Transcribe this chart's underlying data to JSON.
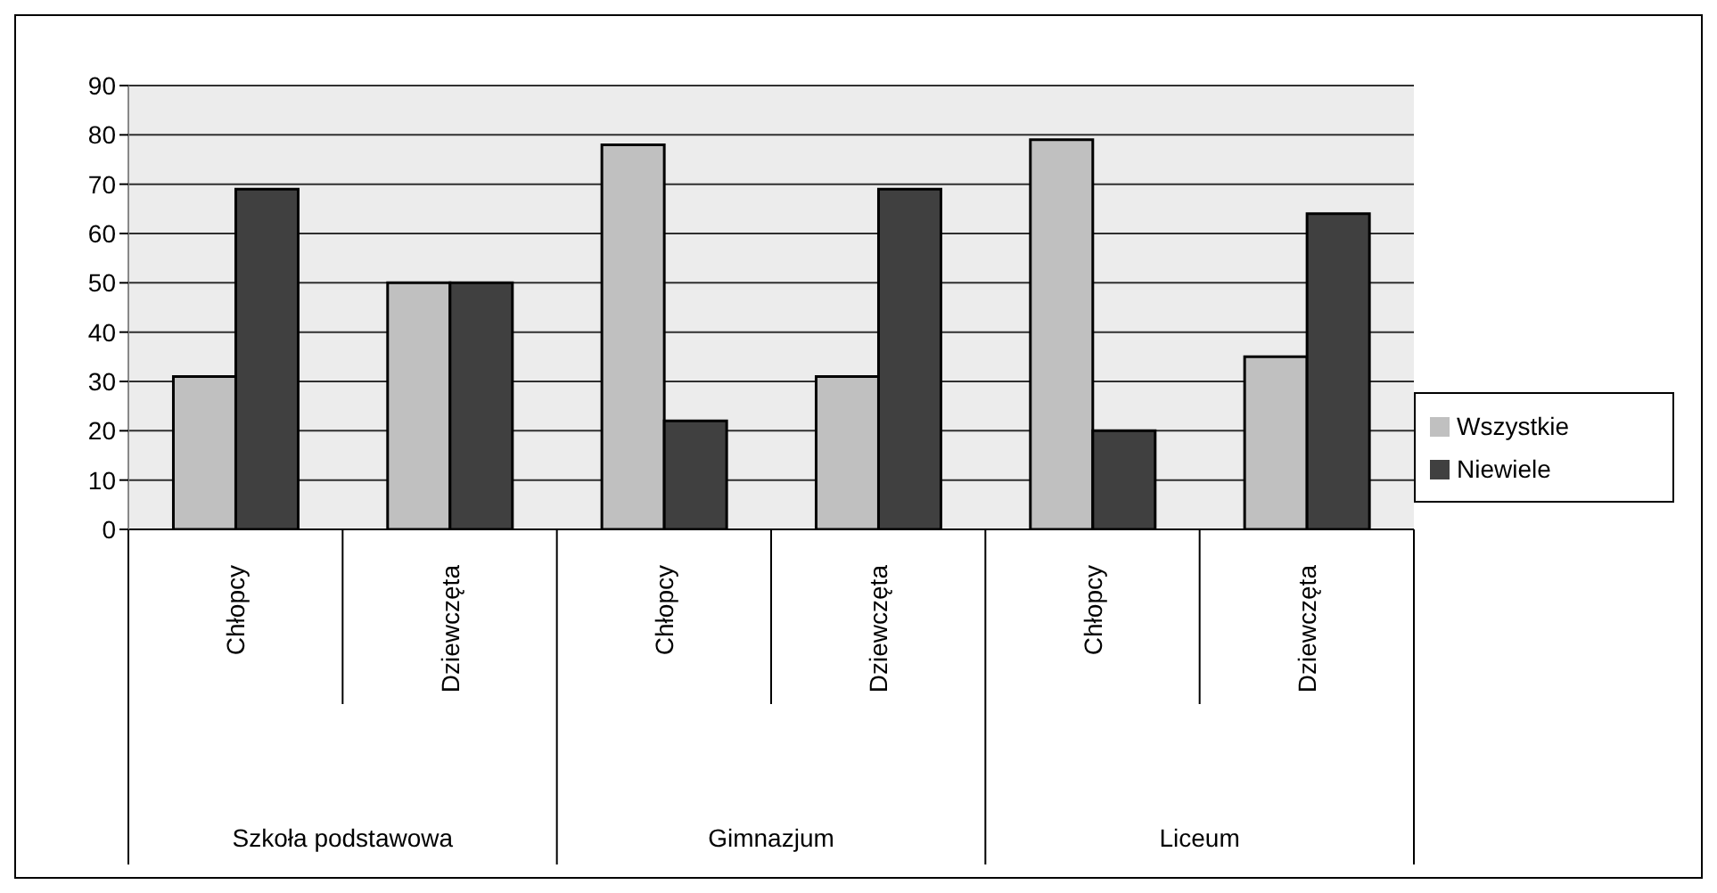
{
  "chart_data": {
    "type": "bar",
    "categories": [
      "Chłopcy",
      "Dziewczęta",
      "Chłopcy",
      "Dziewczęta",
      "Chłopcy",
      "Dziewczęta"
    ],
    "annotations": [
      "Szkoła podstawowa",
      "Gimnazjum",
      "Liceum"
    ],
    "series": [
      {
        "name": "Wszystkie",
        "color": "#c0c0c0",
        "values": [
          31,
          50,
          78,
          31,
          79,
          35
        ]
      },
      {
        "name": "Niewiele",
        "color": "#404040",
        "values": [
          69,
          50,
          22,
          69,
          20,
          64
        ]
      }
    ],
    "ylim": [
      0,
      90
    ],
    "yticks": [
      0,
      10,
      20,
      30,
      40,
      50,
      60,
      70,
      80,
      90
    ],
    "grid": "y",
    "legend": "right"
  }
}
